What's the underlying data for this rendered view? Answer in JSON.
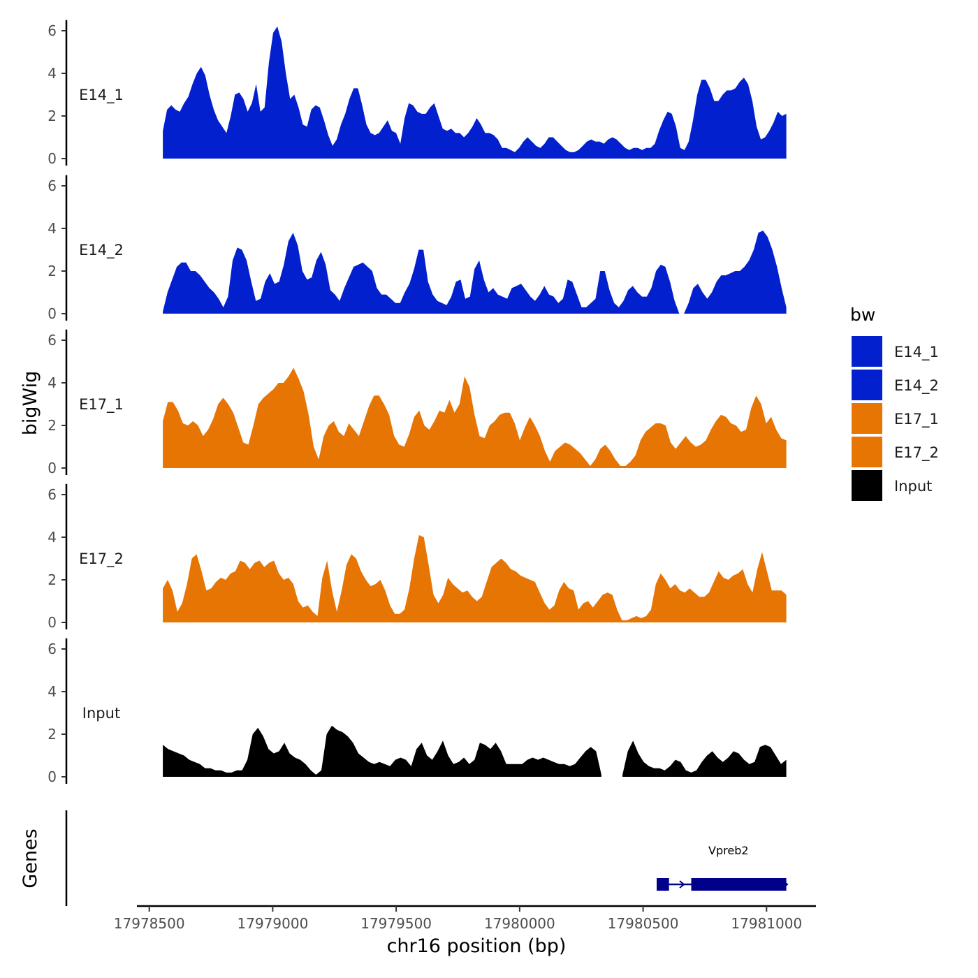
{
  "chart_data": {
    "type": "area",
    "x_range": [
      17978555,
      17981080
    ],
    "xlim": [
      17978450,
      17981200
    ],
    "xlabel": "chr16 position (bp)",
    "ylabel": "bigWig",
    "genes_label": "Genes",
    "ylim": [
      0,
      6.5
    ],
    "y_ticks": [
      0,
      2,
      4,
      6
    ],
    "x_ticks": [
      17978500,
      17979000,
      17979500,
      17980000,
      17980500,
      17981000
    ],
    "x_tick_labels": [
      "17978500",
      "17979000",
      "17979500",
      "17980000",
      "17980500",
      "17981000"
    ],
    "legend": {
      "title": "bw",
      "items": [
        {
          "label": "E14_1",
          "color": "#0320CF"
        },
        {
          "label": "E14_2",
          "color": "#0320CF"
        },
        {
          "label": "E17_1",
          "color": "#E77504"
        },
        {
          "label": "E17_2",
          "color": "#E77504"
        },
        {
          "label": "Input",
          "color": "#000000"
        }
      ]
    },
    "series": [
      {
        "name": "E14_1",
        "color": "#0320CF",
        "values": [
          1.3,
          2.3,
          2.5,
          2.3,
          2.2,
          2.6,
          2.9,
          3.5,
          4.0,
          4.3,
          3.9,
          3.0,
          2.3,
          1.8,
          1.5,
          1.2,
          2.0,
          3.0,
          3.1,
          2.8,
          2.2,
          2.6,
          3.5,
          2.2,
          2.4,
          4.5,
          5.9,
          6.2,
          5.5,
          4.0,
          2.8,
          3.0,
          2.4,
          1.6,
          1.5,
          2.3,
          2.5,
          2.4,
          1.8,
          1.1,
          0.6,
          0.9,
          1.6,
          2.1,
          2.8,
          3.3,
          3.3,
          2.5,
          1.6,
          1.2,
          1.1,
          1.2,
          1.5,
          1.8,
          1.3,
          1.2,
          0.7,
          1.9,
          2.6,
          2.5,
          2.2,
          2.1,
          2.1,
          2.4,
          2.6,
          2.0,
          1.4,
          1.3,
          1.4,
          1.2,
          1.2,
          1.0,
          1.2,
          1.5,
          1.9,
          1.6,
          1.2,
          1.2,
          1.1,
          0.9,
          0.5,
          0.5,
          0.4,
          0.3,
          0.5,
          0.8,
          1.0,
          0.8,
          0.6,
          0.5,
          0.7,
          1.0,
          1.0,
          0.8,
          0.6,
          0.4,
          0.3,
          0.3,
          0.4,
          0.6,
          0.8,
          0.9,
          0.8,
          0.8,
          0.7,
          0.9,
          1.0,
          0.9,
          0.7,
          0.5,
          0.4,
          0.5,
          0.5,
          0.4,
          0.5,
          0.5,
          0.7,
          1.3,
          1.8,
          2.2,
          2.1,
          1.5,
          0.5,
          0.4,
          0.8,
          1.8,
          3.0,
          3.7,
          3.7,
          3.3,
          2.7,
          2.7,
          3.0,
          3.2,
          3.2,
          3.3,
          3.6,
          3.8,
          3.5,
          2.7,
          1.5,
          0.9,
          1.0,
          1.3,
          1.7,
          2.2,
          2.0,
          2.1
        ]
      },
      {
        "name": "E14_2",
        "color": "#0320CF",
        "values": [
          0.1,
          1.0,
          1.6,
          2.2,
          2.4,
          2.4,
          2.0,
          2.0,
          1.8,
          1.5,
          1.2,
          1.0,
          0.7,
          0.3,
          0.8,
          2.5,
          3.1,
          3.0,
          2.5,
          1.5,
          0.6,
          0.7,
          1.5,
          1.9,
          1.4,
          1.5,
          2.3,
          3.4,
          3.8,
          3.2,
          2.0,
          1.6,
          1.7,
          2.5,
          2.9,
          2.3,
          1.1,
          0.9,
          0.6,
          1.2,
          1.7,
          2.2,
          2.3,
          2.4,
          2.2,
          2.0,
          1.2,
          0.9,
          0.9,
          0.7,
          0.5,
          0.5,
          1.0,
          1.4,
          2.1,
          3.0,
          3.0,
          1.5,
          0.9,
          0.6,
          0.5,
          0.4,
          0.8,
          1.5,
          1.6,
          0.7,
          0.8,
          2.1,
          2.5,
          1.6,
          1.0,
          1.2,
          0.9,
          0.8,
          0.7,
          1.2,
          1.3,
          1.4,
          1.1,
          0.8,
          0.6,
          0.9,
          1.3,
          0.9,
          0.8,
          0.5,
          0.7,
          1.6,
          1.5,
          0.9,
          0.3,
          0.3,
          0.5,
          0.7,
          2.0,
          2.0,
          1.1,
          0.5,
          0.3,
          0.6,
          1.1,
          1.3,
          1.0,
          0.8,
          0.8,
          1.2,
          2.0,
          2.3,
          2.2,
          1.5,
          0.6,
          0.0,
          0.0,
          0.5,
          1.2,
          1.4,
          1.0,
          0.7,
          1.0,
          1.5,
          1.8,
          1.8,
          1.9,
          2.0,
          2.0,
          2.2,
          2.5,
          3.0,
          3.8,
          3.9,
          3.6,
          3.0,
          2.2,
          1.2,
          0.3
        ]
      },
      {
        "name": "E17_1",
        "color": "#E77504",
        "values": [
          2.2,
          3.1,
          3.1,
          2.7,
          2.1,
          2.0,
          2.2,
          2.0,
          1.5,
          1.8,
          2.3,
          3.0,
          3.3,
          3.0,
          2.6,
          1.9,
          1.2,
          1.1,
          2.0,
          3.0,
          3.3,
          3.5,
          3.7,
          4.0,
          4.0,
          4.3,
          4.7,
          4.2,
          3.6,
          2.5,
          1.0,
          0.4,
          1.5,
          2.0,
          2.2,
          1.7,
          1.5,
          2.1,
          1.8,
          1.5,
          2.2,
          2.9,
          3.4,
          3.4,
          3.0,
          2.5,
          1.5,
          1.1,
          1.0,
          1.6,
          2.4,
          2.7,
          2.0,
          1.8,
          2.2,
          2.7,
          2.6,
          3.2,
          2.6,
          3.0,
          4.3,
          3.8,
          2.5,
          1.5,
          1.4,
          2.0,
          2.2,
          2.5,
          2.6,
          2.6,
          2.1,
          1.3,
          1.9,
          2.4,
          2.0,
          1.5,
          0.8,
          0.3,
          0.8,
          1.0,
          1.2,
          1.1,
          0.9,
          0.7,
          0.4,
          0.1,
          0.4,
          0.9,
          1.1,
          0.8,
          0.4,
          0.1,
          0.1,
          0.3,
          0.6,
          1.3,
          1.7,
          1.9,
          2.1,
          2.1,
          2.0,
          1.2,
          0.9,
          1.2,
          1.5,
          1.2,
          1.0,
          1.1,
          1.3,
          1.8,
          2.2,
          2.5,
          2.4,
          2.1,
          2.0,
          1.7,
          1.8,
          2.8,
          3.4,
          3.0,
          2.1,
          2.4,
          1.8,
          1.4,
          1.3
        ]
      },
      {
        "name": "E17_2",
        "color": "#E77504",
        "values": [
          1.6,
          2.0,
          1.5,
          0.5,
          0.9,
          1.8,
          3.0,
          3.2,
          2.4,
          1.5,
          1.6,
          1.9,
          2.1,
          2.0,
          2.3,
          2.4,
          2.9,
          2.8,
          2.5,
          2.8,
          2.9,
          2.6,
          2.8,
          2.9,
          2.3,
          2.0,
          2.1,
          1.8,
          1.0,
          0.7,
          0.8,
          0.5,
          0.3,
          2.1,
          2.9,
          1.5,
          0.5,
          1.5,
          2.7,
          3.2,
          3.0,
          2.4,
          2.0,
          1.7,
          1.8,
          2.0,
          1.5,
          0.8,
          0.4,
          0.4,
          0.6,
          1.6,
          3.0,
          4.1,
          4.0,
          2.7,
          1.3,
          0.9,
          1.3,
          2.1,
          1.8,
          1.6,
          1.4,
          1.5,
          1.2,
          1.0,
          1.2,
          1.9,
          2.6,
          2.8,
          3.0,
          2.8,
          2.5,
          2.4,
          2.2,
          2.1,
          2.0,
          1.9,
          1.4,
          0.9,
          0.6,
          0.8,
          1.5,
          1.9,
          1.6,
          1.5,
          0.6,
          0.9,
          1.0,
          0.7,
          1.0,
          1.3,
          1.4,
          1.3,
          0.6,
          0.1,
          0.1,
          0.2,
          0.3,
          0.2,
          0.3,
          0.6,
          1.8,
          2.3,
          2.0,
          1.6,
          1.8,
          1.5,
          1.4,
          1.6,
          1.4,
          1.2,
          1.2,
          1.4,
          1.9,
          2.4,
          2.1,
          2.0,
          2.2,
          2.3,
          2.5,
          1.8,
          1.4,
          2.5,
          3.3,
          2.4,
          1.5,
          1.5,
          1.5,
          1.3
        ]
      },
      {
        "name": "Input",
        "color": "#000000",
        "values": [
          1.5,
          1.3,
          1.2,
          1.1,
          1.0,
          0.8,
          0.7,
          0.6,
          0.4,
          0.4,
          0.3,
          0.3,
          0.2,
          0.2,
          0.3,
          0.3,
          0.8,
          2.0,
          2.3,
          1.9,
          1.3,
          1.1,
          1.2,
          1.6,
          1.1,
          0.9,
          0.8,
          0.6,
          0.3,
          0.1,
          0.3,
          2.0,
          2.4,
          2.2,
          2.1,
          1.9,
          1.6,
          1.1,
          0.9,
          0.7,
          0.6,
          0.7,
          0.6,
          0.5,
          0.8,
          0.9,
          0.8,
          0.5,
          1.3,
          1.6,
          1.0,
          0.8,
          1.2,
          1.7,
          1.0,
          0.6,
          0.7,
          0.9,
          0.6,
          0.8,
          1.6,
          1.5,
          1.3,
          1.6,
          1.2,
          0.6,
          0.6,
          0.6,
          0.6,
          0.8,
          0.9,
          0.8,
          0.9,
          0.8,
          0.7,
          0.6,
          0.6,
          0.5,
          0.6,
          0.9,
          1.2,
          1.4,
          1.2,
          0.1,
          null,
          null,
          null,
          0.1,
          1.2,
          1.7,
          1.1,
          0.7,
          0.5,
          0.4,
          0.4,
          0.3,
          0.5,
          0.8,
          0.7,
          0.3,
          0.2,
          0.3,
          0.7,
          1.0,
          1.2,
          0.9,
          0.7,
          0.9,
          1.2,
          1.1,
          0.8,
          0.6,
          0.7,
          1.4,
          1.5,
          1.4,
          1.0,
          0.6,
          0.8
        ]
      }
    ],
    "gene": {
      "name": "Vpreb2",
      "color": "#00008B",
      "start": 17980555,
      "end": 17981080,
      "exons": [
        [
          17980555,
          17980605
        ],
        [
          17980695,
          17981080
        ]
      ]
    }
  }
}
